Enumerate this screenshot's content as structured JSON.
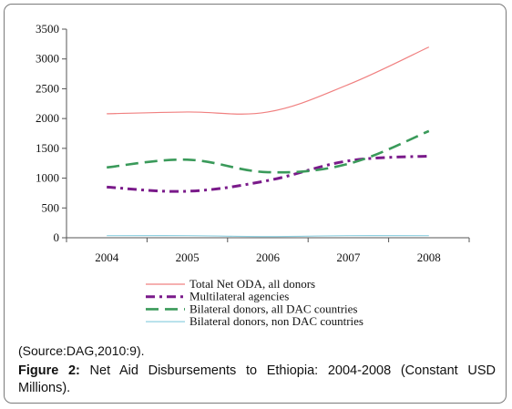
{
  "chart_data": {
    "type": "line",
    "categories": [
      "2004",
      "2005",
      "2006",
      "2007",
      "2008"
    ],
    "ylim": [
      0,
      3500
    ],
    "yticks": [
      0,
      500,
      1000,
      1500,
      2000,
      2500,
      3000,
      3500
    ],
    "grid": false,
    "legend_position": "bottom",
    "series": [
      {
        "name": "Total Net ODA, all donors",
        "values": [
          2080,
          2110,
          2110,
          2570,
          3200
        ],
        "color": "#f08080",
        "style": "solid"
      },
      {
        "name": "Multilateral agencies",
        "values": [
          850,
          780,
          960,
          1290,
          1370
        ],
        "color": "#7a1a8a",
        "style": "dashdot"
      },
      {
        "name": "Bilateral donors, all DAC countries",
        "values": [
          1180,
          1310,
          1100,
          1240,
          1790
        ],
        "color": "#3a9a5a",
        "style": "dash"
      },
      {
        "name": "Bilateral donors, non DAC countries",
        "values": [
          35,
          35,
          20,
          35,
          35
        ],
        "color": "#8fd0e0",
        "style": "solid"
      }
    ]
  },
  "source_text": "(Source:DAG,2010:9).",
  "caption": {
    "label": "Figure 2:",
    "text": " Net Aid Disbursements to Ethiopia: 2004-2008 (Constant USD Millions)."
  }
}
